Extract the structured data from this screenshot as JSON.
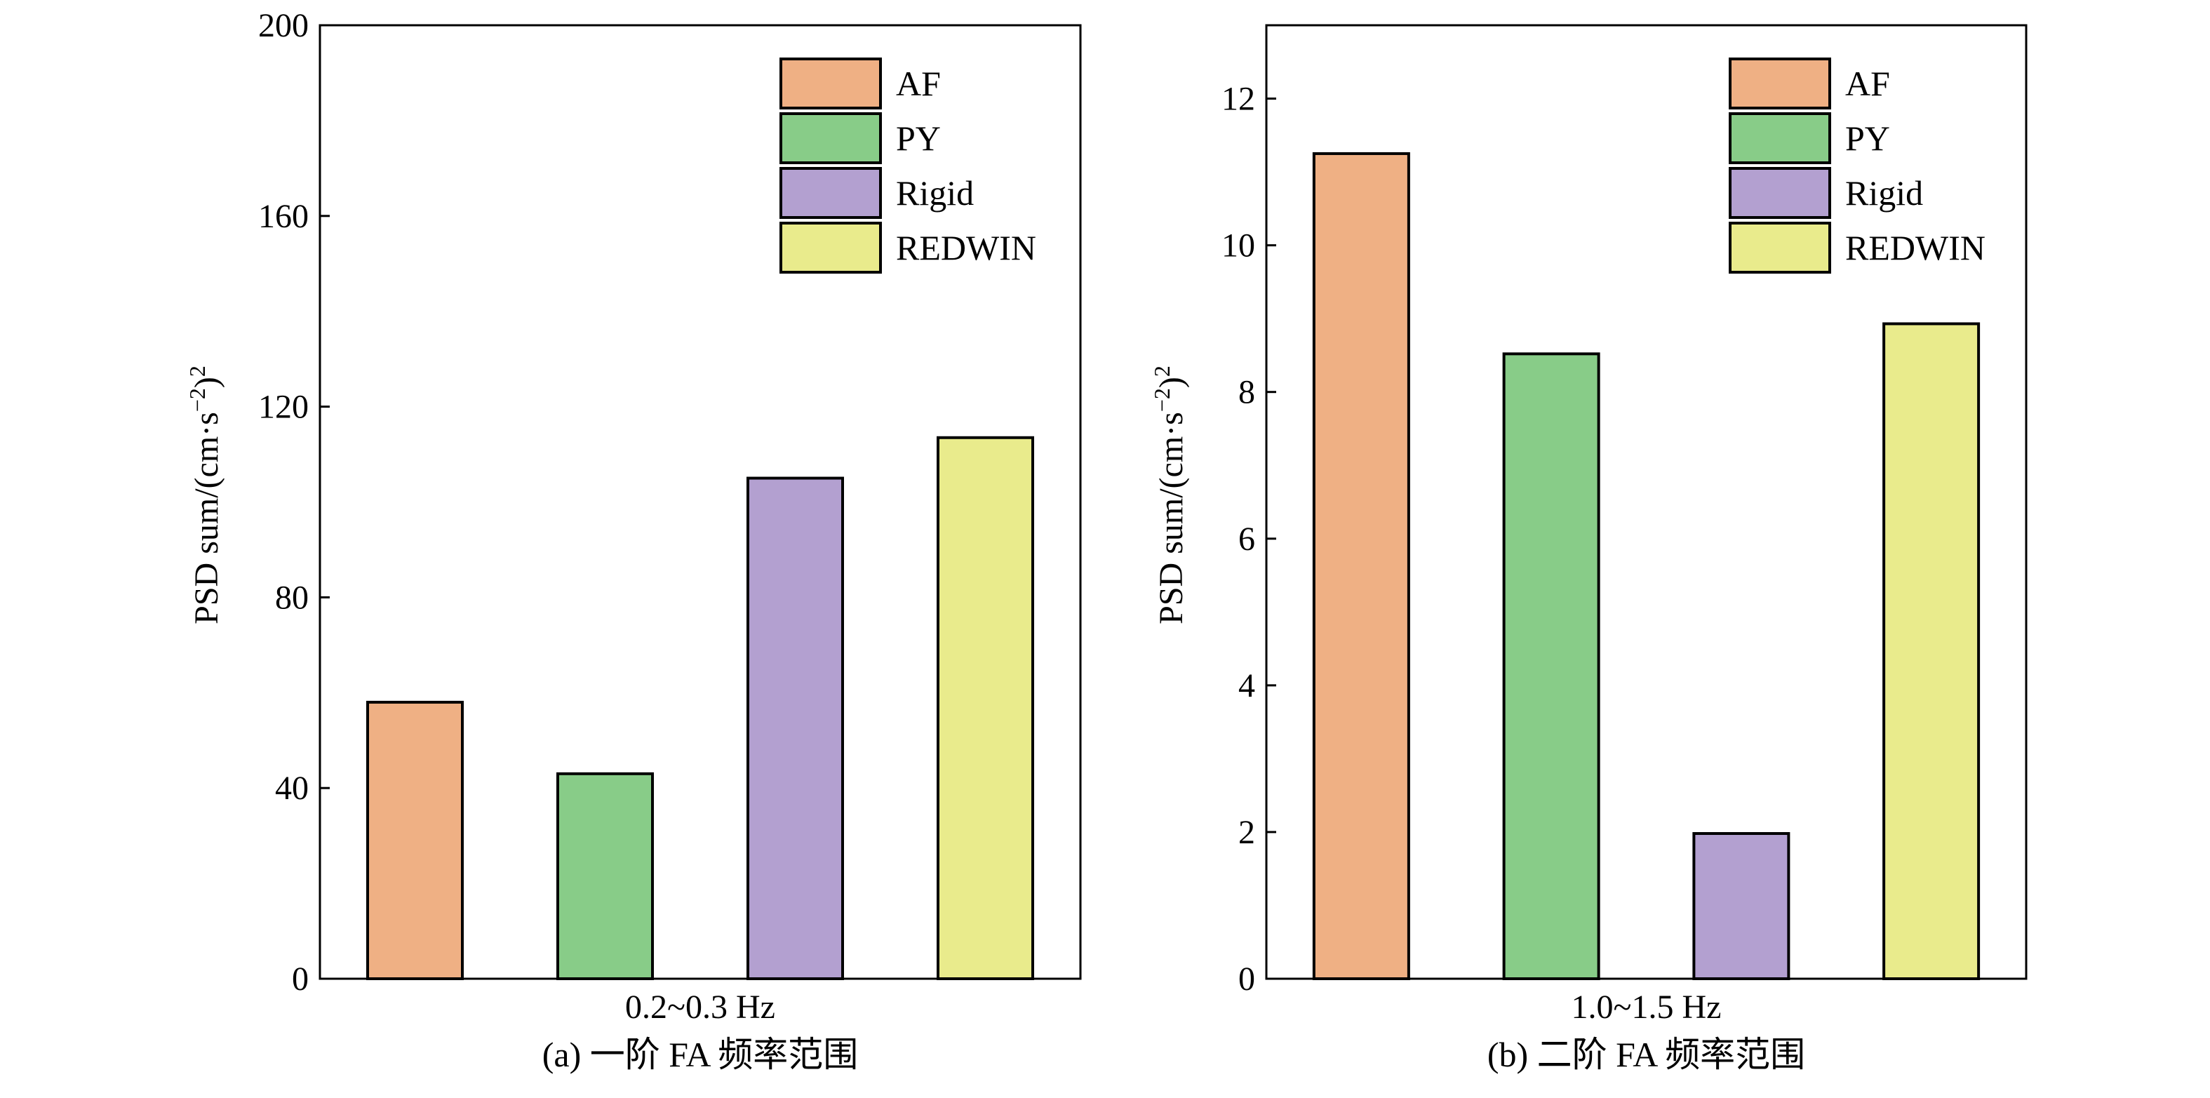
{
  "chart_data": [
    {
      "type": "bar",
      "categories": [
        "AF",
        "PY",
        "Rigid",
        "REDWIN"
      ],
      "values": [
        58,
        43,
        105,
        113.5
      ],
      "ylabel": "PSD sum/(cm·s⁻²)²",
      "xlabel": "0.2~0.3 Hz",
      "caption": "(a) 一阶 FA 频率范围",
      "ylim": [
        0,
        200
      ],
      "yticks": [
        0,
        40,
        80,
        120,
        160,
        200
      ],
      "colors": [
        "#EFB084",
        "#88CC88",
        "#B3A0D0",
        "#E9EB8C"
      ],
      "legend": [
        "AF",
        "PY",
        "Rigid",
        "REDWIN"
      ],
      "legend_position": "top-right",
      "grid": false
    },
    {
      "type": "bar",
      "categories": [
        "AF",
        "PY",
        "Rigid",
        "REDWIN"
      ],
      "values": [
        11.25,
        8.52,
        1.98,
        8.93
      ],
      "ylabel": "PSD sum/(cm·s⁻²)²",
      "xlabel": "1.0~1.5 Hz",
      "caption": "(b) 二阶 FA 频率范围",
      "ylim": [
        0,
        13
      ],
      "yticks": [
        0,
        2,
        4,
        6,
        8,
        10,
        12
      ],
      "colors": [
        "#EFB084",
        "#88CC88",
        "#B3A0D0",
        "#E9EB8C"
      ],
      "legend": [
        "AF",
        "PY",
        "Rigid",
        "REDWIN"
      ],
      "legend_position": "top-right",
      "grid": false
    }
  ]
}
